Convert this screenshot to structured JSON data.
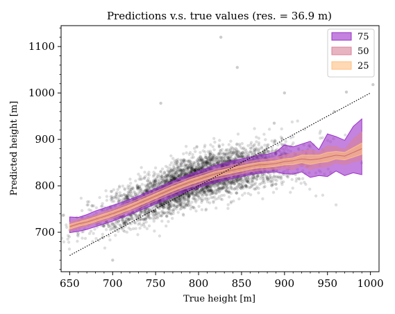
{
  "chart_data": {
    "type": "scatter",
    "title": "Predictions v.s. true values (res. = 36.9 m)",
    "xlabel": "True height [m]",
    "ylabel": "Predicted height [m]",
    "xlim": [
      640,
      1010
    ],
    "ylim": [
      615,
      1145
    ],
    "xticks": [
      650,
      700,
      750,
      800,
      850,
      900,
      950,
      1000
    ],
    "yticks": [
      700,
      800,
      900,
      1000,
      1100
    ],
    "grid": false,
    "legend_position": "top-right",
    "scatter_color": "#000000",
    "identity_line": {
      "x": [
        650,
        1000
      ],
      "y": [
        650,
        1000
      ],
      "style": "dotted"
    },
    "band_x": [
      650,
      660,
      670,
      680,
      690,
      700,
      710,
      720,
      730,
      740,
      750,
      760,
      770,
      780,
      790,
      800,
      810,
      820,
      830,
      840,
      850,
      860,
      870,
      880,
      890,
      900,
      910,
      920,
      930,
      940,
      950,
      960,
      970,
      980,
      990
    ],
    "median": [
      712,
      718,
      722,
      728,
      734,
      740,
      747,
      754,
      762,
      770,
      778,
      786,
      794,
      801,
      808,
      814,
      820,
      826,
      830,
      834,
      838,
      842,
      845,
      846,
      848,
      852,
      854,
      858,
      856,
      858,
      862,
      866,
      864,
      872,
      880
    ],
    "bands": [
      {
        "name": "75",
        "color": "#9b30c8",
        "lower": [
          699,
          702,
          706,
          712,
          718,
          724,
          731,
          738,
          746,
          753,
          761,
          768,
          776,
          783,
          790,
          796,
          802,
          807,
          812,
          816,
          820,
          824,
          827,
          829,
          830,
          826,
          825,
          830,
          818,
          822,
          820,
          832,
          822,
          828,
          824
        ],
        "upper": [
          733,
          732,
          738,
          746,
          752,
          758,
          764,
          771,
          778,
          786,
          794,
          802,
          810,
          818,
          825,
          832,
          838,
          844,
          849,
          854,
          858,
          862,
          866,
          868,
          873,
          888,
          884,
          890,
          896,
          878,
          912,
          906,
          898,
          928,
          944
        ]
      },
      {
        "name": "50",
        "color": "#d9829a",
        "lower": [
          703,
          708,
          713,
          719,
          724,
          730,
          737,
          744,
          752,
          760,
          768,
          776,
          783,
          791,
          797,
          803,
          809,
          814,
          818,
          822,
          826,
          830,
          833,
          835,
          836,
          838,
          836,
          844,
          836,
          840,
          842,
          850,
          846,
          852,
          856
        ],
        "upper": [
          722,
          727,
          731,
          737,
          744,
          750,
          757,
          764,
          772,
          780,
          788,
          796,
          804,
          811,
          818,
          824,
          830,
          836,
          840,
          845,
          849,
          853,
          856,
          858,
          861,
          866,
          870,
          874,
          878,
          872,
          886,
          884,
          878,
          900,
          916
        ]
      },
      {
        "name": "25",
        "color": "#ffbf80",
        "lower": [
          707,
          713,
          717,
          723,
          729,
          735,
          742,
          749,
          757,
          765,
          773,
          781,
          789,
          796,
          803,
          809,
          815,
          820,
          824,
          828,
          832,
          836,
          839,
          840,
          842,
          845,
          846,
          850,
          846,
          850,
          852,
          858,
          856,
          862,
          868
        ],
        "upper": [
          717,
          722,
          727,
          733,
          739,
          745,
          752,
          759,
          767,
          775,
          783,
          791,
          799,
          806,
          813,
          819,
          825,
          831,
          835,
          839,
          843,
          847,
          850,
          852,
          854,
          858,
          860,
          866,
          866,
          866,
          872,
          874,
          872,
          882,
          892
        ]
      }
    ]
  }
}
